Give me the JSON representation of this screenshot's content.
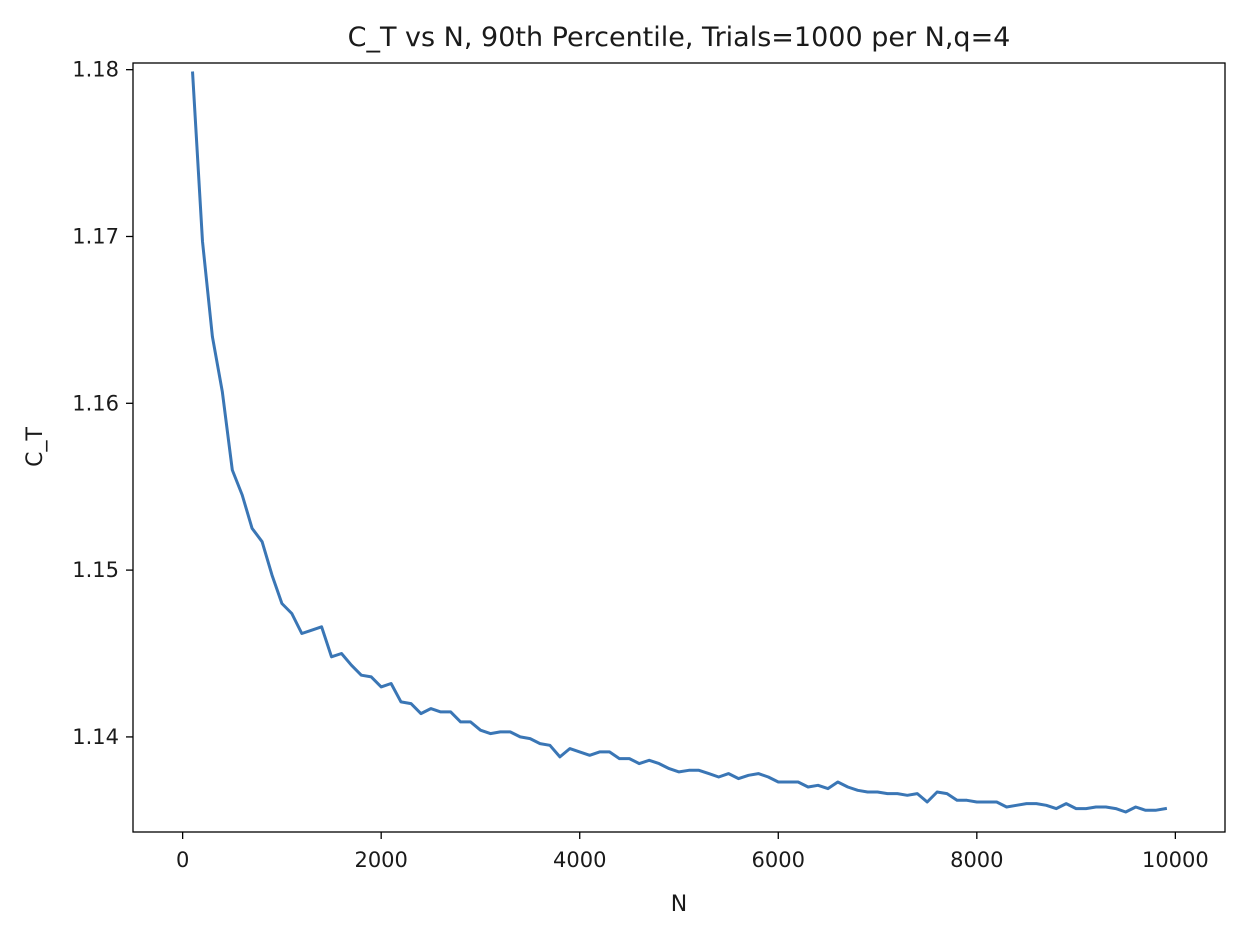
{
  "chart_data": {
    "type": "line",
    "title": "C_T vs N, 90th Percentile, Trials=1000 per N,q=4",
    "xlabel": "N",
    "ylabel": "C_T",
    "xlim": [
      -500,
      10500
    ],
    "ylim": [
      1.1343,
      1.1804
    ],
    "xticks": [
      0,
      2000,
      4000,
      6000,
      8000,
      10000
    ],
    "xtick_labels": [
      "0",
      "2000",
      "4000",
      "6000",
      "8000",
      "10000"
    ],
    "yticks": [
      1.14,
      1.15,
      1.16,
      1.17,
      1.18
    ],
    "ytick_labels": [
      "1.14",
      "1.15",
      "1.16",
      "1.17",
      "1.18"
    ],
    "grid": false,
    "series": [
      {
        "color": "#3a76b5",
        "x": [
          100,
          200,
          300,
          400,
          500,
          600,
          700,
          800,
          900,
          1000,
          1100,
          1200,
          1300,
          1400,
          1500,
          1600,
          1700,
          1800,
          1900,
          2000,
          2100,
          2200,
          2300,
          2400,
          2500,
          2600,
          2700,
          2800,
          2900,
          3000,
          3100,
          3200,
          3300,
          3400,
          3500,
          3600,
          3700,
          3800,
          3900,
          4000,
          4100,
          4200,
          4300,
          4400,
          4500,
          4600,
          4700,
          4800,
          4900,
          5000,
          5100,
          5200,
          5300,
          5400,
          5500,
          5600,
          5700,
          5800,
          5900,
          6000,
          6100,
          6200,
          6300,
          6400,
          6500,
          6600,
          6700,
          6800,
          6900,
          7000,
          7100,
          7200,
          7300,
          7400,
          7500,
          7600,
          7700,
          7800,
          7900,
          8000,
          8100,
          8200,
          8300,
          8400,
          8500,
          8600,
          8700,
          8800,
          8900,
          9000,
          9100,
          9200,
          9300,
          9400,
          9500,
          9600,
          9700,
          9800,
          9900
        ],
        "y": [
          1.1798,
          1.1697,
          1.164,
          1.1607,
          1.156,
          1.1545,
          1.1525,
          1.1517,
          1.1497,
          1.148,
          1.1474,
          1.1462,
          1.1464,
          1.1466,
          1.1448,
          1.145,
          1.1443,
          1.1437,
          1.1436,
          1.143,
          1.1432,
          1.1421,
          1.142,
          1.1414,
          1.1417,
          1.1415,
          1.1415,
          1.1409,
          1.1409,
          1.1404,
          1.1402,
          1.1403,
          1.1403,
          1.14,
          1.1399,
          1.1396,
          1.1395,
          1.1388,
          1.1393,
          1.1391,
          1.1389,
          1.1391,
          1.1391,
          1.1387,
          1.1387,
          1.1384,
          1.1386,
          1.1384,
          1.1381,
          1.1379,
          1.138,
          1.138,
          1.1378,
          1.1376,
          1.1378,
          1.1375,
          1.1377,
          1.1378,
          1.1376,
          1.1373,
          1.1373,
          1.1373,
          1.137,
          1.1371,
          1.1369,
          1.1373,
          1.137,
          1.1368,
          1.1367,
          1.1367,
          1.1366,
          1.1366,
          1.1365,
          1.1366,
          1.1361,
          1.1367,
          1.1366,
          1.1362,
          1.1362,
          1.1361,
          1.1361,
          1.1361,
          1.1358,
          1.1359,
          1.136,
          1.136,
          1.1359,
          1.1357,
          1.136,
          1.1357,
          1.1357,
          1.1358,
          1.1358,
          1.1357,
          1.1355,
          1.1358,
          1.1356,
          1.1356,
          1.1357
        ]
      }
    ]
  }
}
